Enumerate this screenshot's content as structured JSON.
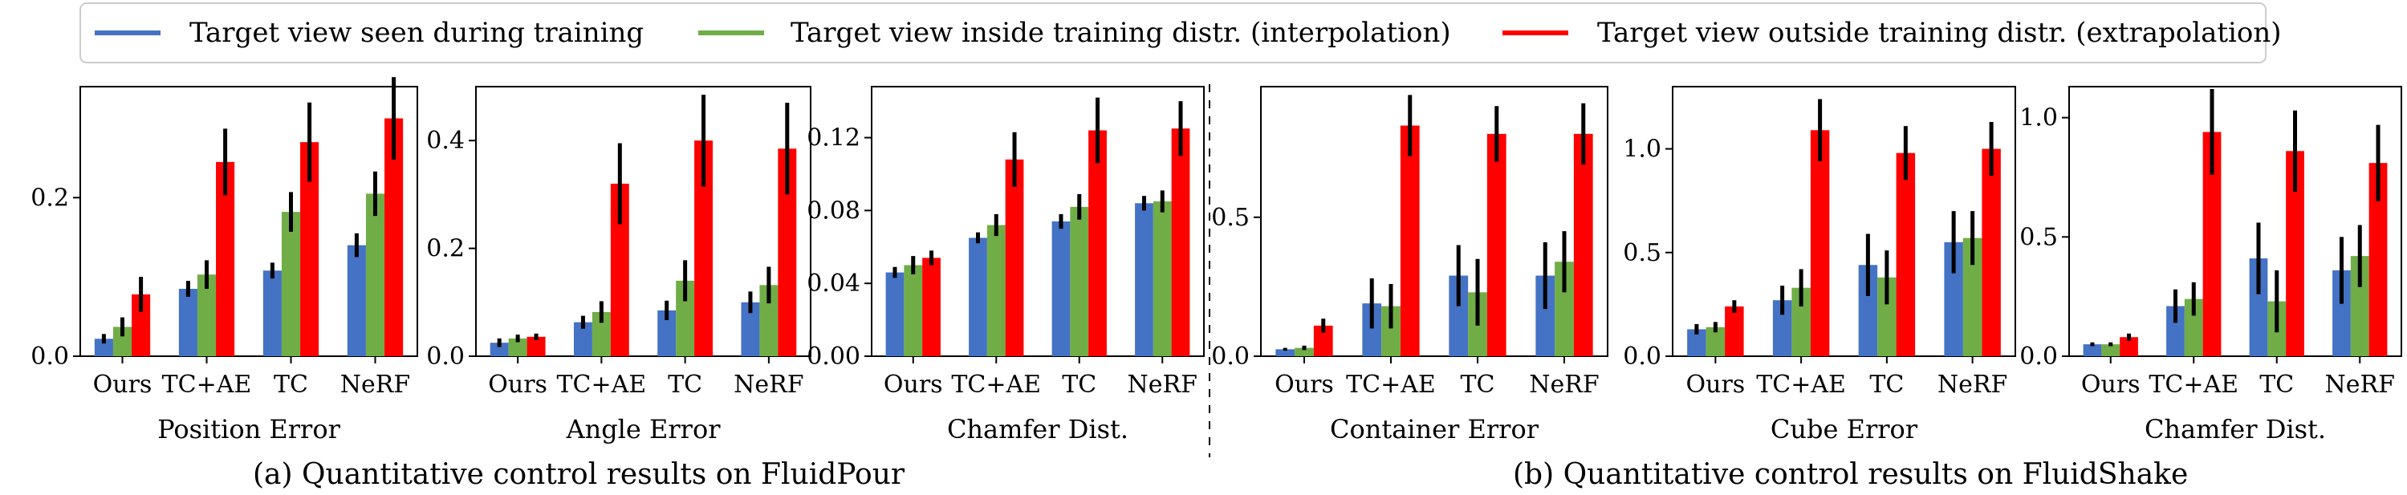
{
  "legend": {
    "items": [
      {
        "label": "Target view seen during training",
        "color": "#4472C4"
      },
      {
        "label": "Target view inside training distr. (interpolation)",
        "color": "#70AD47"
      },
      {
        "label": "Target view outside training distr. (extrapolation)",
        "color": "#FF0000"
      }
    ]
  },
  "captions": {
    "a": "(a) Quantitative control results on FluidPour",
    "b": "(b) Quantitative control results on FluidShake"
  },
  "chart_data": [
    {
      "type": "bar",
      "group": "FluidPour",
      "xlabel": "Position Error",
      "categories": [
        "Ours",
        "TC+AE",
        "TC",
        "NeRF"
      ],
      "ylim": [
        0,
        0.34
      ],
      "yticks": [
        0.0,
        0.2
      ],
      "ytick_labels": [
        "0.0",
        "0.2"
      ],
      "series": [
        {
          "name": "Target view seen during training",
          "values": [
            0.022,
            0.085,
            0.108,
            0.14
          ],
          "errors": [
            0.006,
            0.01,
            0.01,
            0.015
          ]
        },
        {
          "name": "Target view inside training distr. (interpolation)",
          "values": [
            0.037,
            0.103,
            0.182,
            0.205
          ],
          "errors": [
            0.012,
            0.018,
            0.025,
            0.028
          ]
        },
        {
          "name": "Target view outside training distr. (extrapolation)",
          "values": [
            0.078,
            0.245,
            0.27,
            0.3
          ],
          "errors": [
            0.022,
            0.042,
            0.05,
            0.052
          ]
        }
      ]
    },
    {
      "type": "bar",
      "group": "FluidPour",
      "xlabel": "Angle Error",
      "categories": [
        "Ours",
        "TC+AE",
        "TC",
        "NeRF"
      ],
      "ylim": [
        0,
        0.5
      ],
      "yticks": [
        0.0,
        0.2,
        0.4
      ],
      "ytick_labels": [
        "0.0",
        "0.2",
        "0.4"
      ],
      "series": [
        {
          "name": "Target view seen during training",
          "values": [
            0.025,
            0.063,
            0.085,
            0.1
          ],
          "errors": [
            0.008,
            0.012,
            0.018,
            0.02
          ]
        },
        {
          "name": "Target view inside training distr. (interpolation)",
          "values": [
            0.033,
            0.082,
            0.14,
            0.132
          ],
          "errors": [
            0.007,
            0.02,
            0.038,
            0.034
          ]
        },
        {
          "name": "Target view outside training distr. (extrapolation)",
          "values": [
            0.036,
            0.32,
            0.4,
            0.385
          ],
          "errors": [
            0.006,
            0.075,
            0.085,
            0.085
          ]
        }
      ]
    },
    {
      "type": "bar",
      "group": "FluidPour",
      "xlabel": "Chamfer Dist.",
      "categories": [
        "Ours",
        "TC+AE",
        "TC",
        "NeRF"
      ],
      "ylim": [
        0,
        0.148
      ],
      "yticks": [
        0.0,
        0.04,
        0.08,
        0.12
      ],
      "ytick_labels": [
        "0.00",
        "0.04",
        "0.08",
        "0.12"
      ],
      "series": [
        {
          "name": "Target view seen during training",
          "values": [
            0.046,
            0.065,
            0.074,
            0.084
          ],
          "errors": [
            0.003,
            0.003,
            0.004,
            0.004
          ]
        },
        {
          "name": "Target view inside training distr. (interpolation)",
          "values": [
            0.05,
            0.072,
            0.082,
            0.085
          ],
          "errors": [
            0.005,
            0.006,
            0.007,
            0.006
          ]
        },
        {
          "name": "Target view outside training distr. (extrapolation)",
          "values": [
            0.054,
            0.108,
            0.124,
            0.125
          ],
          "errors": [
            0.004,
            0.015,
            0.018,
            0.015
          ]
        }
      ]
    },
    {
      "type": "bar",
      "group": "FluidShake",
      "xlabel": "Container Error",
      "categories": [
        "Ours",
        "TC+AE",
        "TC",
        "NeRF"
      ],
      "ylim": [
        0,
        0.97
      ],
      "yticks": [
        0.0,
        0.5
      ],
      "ytick_labels": [
        "0.0",
        "0.5"
      ],
      "series": [
        {
          "name": "Target view seen during training",
          "values": [
            0.025,
            0.19,
            0.29,
            0.29
          ],
          "errors": [
            0.005,
            0.09,
            0.11,
            0.12
          ]
        },
        {
          "name": "Target view inside training distr. (interpolation)",
          "values": [
            0.03,
            0.18,
            0.23,
            0.34
          ],
          "errors": [
            0.008,
            0.08,
            0.12,
            0.11
          ]
        },
        {
          "name": "Target view outside training distr. (extrapolation)",
          "values": [
            0.11,
            0.83,
            0.8,
            0.8
          ],
          "errors": [
            0.025,
            0.11,
            0.1,
            0.11
          ]
        }
      ]
    },
    {
      "type": "bar",
      "group": "FluidShake",
      "xlabel": "Cube Error",
      "categories": [
        "Ours",
        "TC+AE",
        "TC",
        "NeRF"
      ],
      "ylim": [
        0,
        1.3
      ],
      "yticks": [
        0.0,
        0.5,
        1.0
      ],
      "ytick_labels": [
        "0.0",
        "0.5",
        "1.0"
      ],
      "series": [
        {
          "name": "Target view seen during training",
          "values": [
            0.13,
            0.27,
            0.44,
            0.55
          ],
          "errors": [
            0.025,
            0.07,
            0.15,
            0.15
          ]
        },
        {
          "name": "Target view inside training distr. (interpolation)",
          "values": [
            0.14,
            0.33,
            0.38,
            0.57
          ],
          "errors": [
            0.025,
            0.09,
            0.13,
            0.13
          ]
        },
        {
          "name": "Target view outside training distr. (extrapolation)",
          "values": [
            0.24,
            1.09,
            0.98,
            1.0
          ],
          "errors": [
            0.03,
            0.15,
            0.13,
            0.13
          ]
        }
      ]
    },
    {
      "type": "bar",
      "group": "FluidShake",
      "xlabel": "Chamfer Dist.",
      "categories": [
        "Ours",
        "TC+AE",
        "TC",
        "NeRF"
      ],
      "ylim": [
        0,
        1.13
      ],
      "yticks": [
        0.0,
        0.5,
        1.0
      ],
      "ytick_labels": [
        "0.0",
        "0.5",
        "1.0"
      ],
      "series": [
        {
          "name": "Target view seen during training",
          "values": [
            0.05,
            0.21,
            0.41,
            0.36
          ],
          "errors": [
            0.008,
            0.07,
            0.15,
            0.14
          ]
        },
        {
          "name": "Target view inside training distr. (interpolation)",
          "values": [
            0.05,
            0.24,
            0.23,
            0.42
          ],
          "errors": [
            0.008,
            0.07,
            0.13,
            0.13
          ]
        },
        {
          "name": "Target view outside training distr. (extrapolation)",
          "values": [
            0.08,
            0.94,
            0.86,
            0.81
          ],
          "errors": [
            0.015,
            0.18,
            0.17,
            0.16
          ]
        }
      ]
    }
  ]
}
